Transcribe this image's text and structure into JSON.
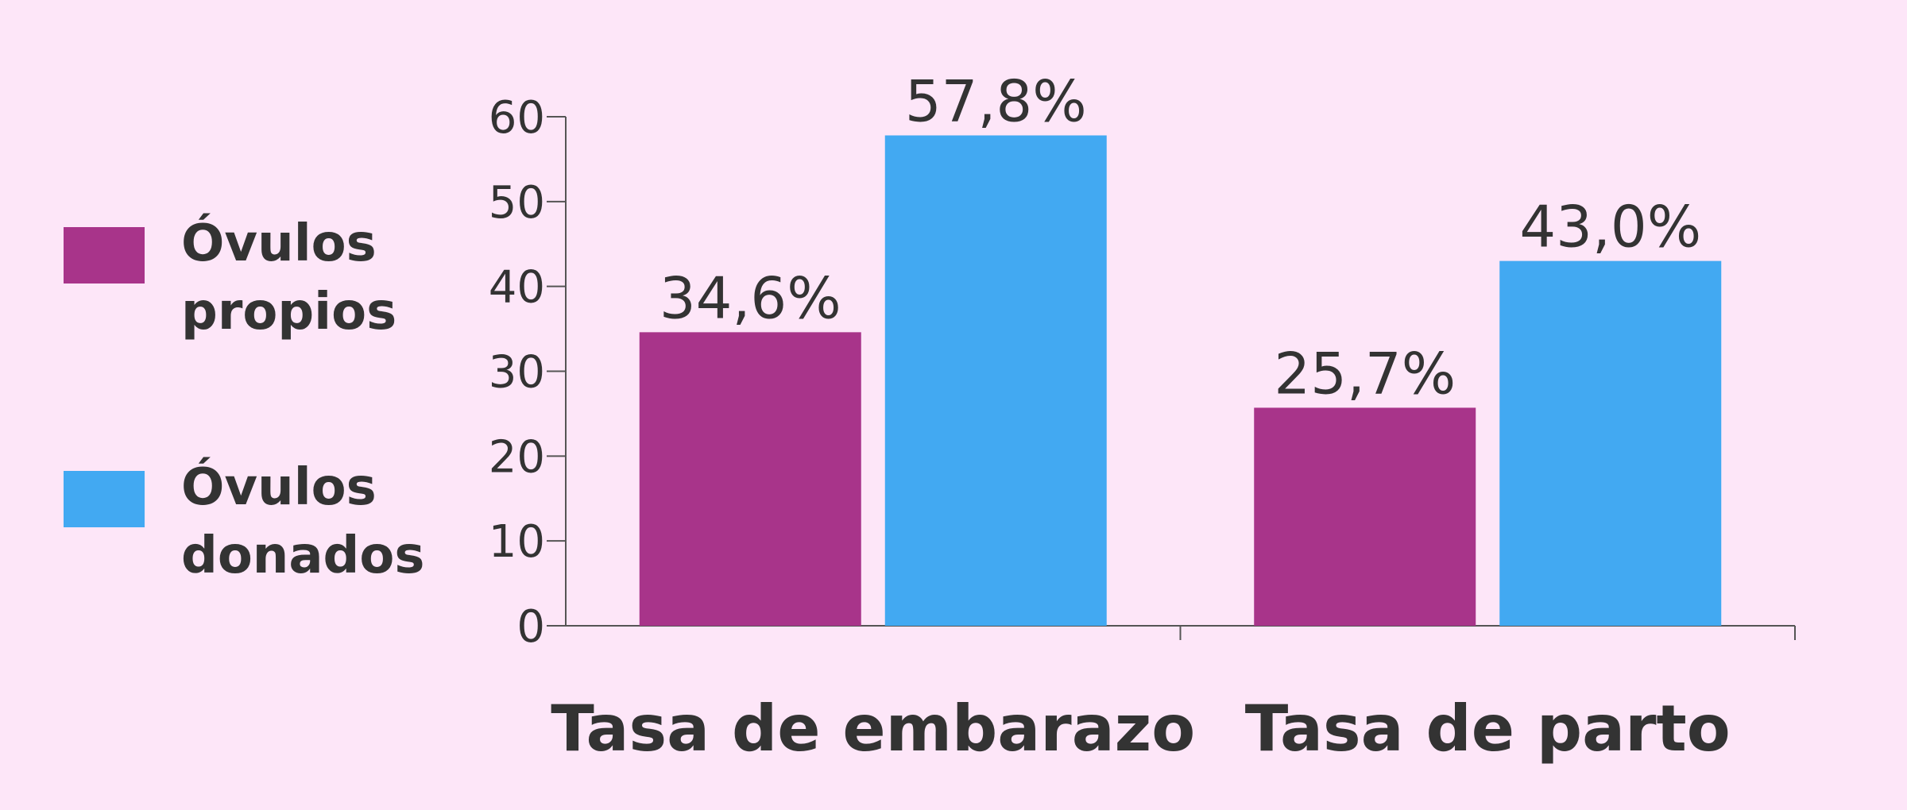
{
  "chart_data": {
    "type": "bar",
    "categories": [
      "Tasa de embarazo",
      "Tasa de parto"
    ],
    "series": [
      {
        "name": "Óvulos propios",
        "color": "#a8348a",
        "values": [
          34.6,
          25.7
        ],
        "value_labels": [
          "34,6%",
          "25,7%"
        ]
      },
      {
        "name": "Óvulos donados",
        "color": "#42a9f2",
        "values": [
          57.8,
          43.0
        ],
        "value_labels": [
          "57,8%",
          "43,0%"
        ]
      }
    ],
    "ylim": [
      0,
      60
    ],
    "yticks": [
      0,
      10,
      20,
      30,
      40,
      50,
      60
    ],
    "grid": false,
    "legend": "left"
  }
}
